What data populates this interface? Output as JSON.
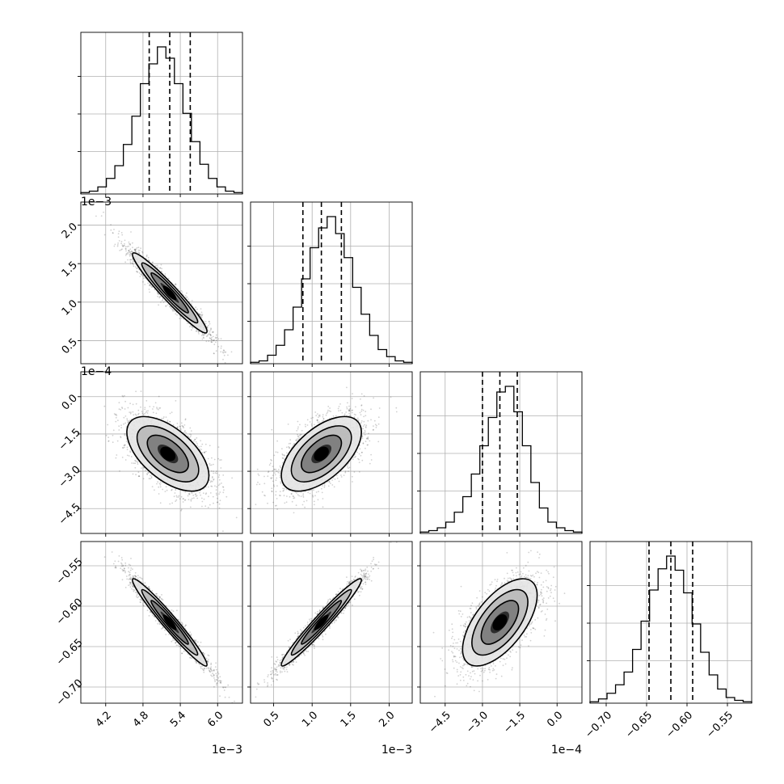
{
  "chart_data": {
    "type": "corner",
    "parameters": [
      {
        "range": [
          3.8,
          6.4
        ],
        "ticks": [
          4.2,
          4.8,
          5.4,
          6.0
        ],
        "tick_labels": [
          "4.2",
          "4.8",
          "5.4",
          "6.0"
        ],
        "offset": "1e−3",
        "quantiles": [
          4.9,
          5.23,
          5.56
        ]
      },
      {
        "range": [
          0.2,
          2.3
        ],
        "ticks": [
          0.5,
          1.0,
          1.5,
          2.0
        ],
        "tick_labels": [
          "0.5",
          "1.0",
          "1.5",
          "2.0"
        ],
        "offset": "1e−3",
        "quantiles": [
          0.88,
          1.12,
          1.38
        ]
      },
      {
        "range": [
          -5.5,
          1.0
        ],
        "ticks": [
          -4.5,
          -3.0,
          -1.5,
          0.0
        ],
        "tick_labels": [
          "−4.5",
          "−3.0",
          "−1.5",
          "0.0"
        ],
        "offset": "1e−4",
        "quantiles": [
          -3.0,
          -2.3,
          -1.6
        ]
      },
      {
        "range": [
          -0.72,
          -0.52
        ],
        "ticks": [
          -0.7,
          -0.65,
          -0.6,
          -0.55
        ],
        "tick_labels": [
          "−0.70",
          "−0.65",
          "−0.60",
          "−0.55"
        ],
        "offset": "",
        "quantiles": [
          -0.647,
          -0.62,
          -0.593
        ]
      }
    ],
    "histograms": [
      [
        1,
        2,
        5,
        11,
        20,
        35,
        55,
        78,
        92,
        104,
        96,
        78,
        57,
        37,
        21,
        11,
        5,
        2,
        1
      ],
      [
        1,
        2,
        6,
        13,
        24,
        40,
        60,
        82,
        96,
        104,
        92,
        75,
        54,
        35,
        20,
        10,
        5,
        2,
        1
      ],
      [
        1,
        2,
        4,
        8,
        15,
        26,
        42,
        62,
        82,
        100,
        104,
        86,
        62,
        36,
        18,
        8,
        4,
        2,
        1
      ],
      [
        1,
        3,
        7,
        13,
        22,
        38,
        58,
        80,
        95,
        104,
        94,
        78,
        56,
        36,
        20,
        10,
        4,
        2,
        1
      ]
    ],
    "pairs": [
      {
        "row": 1,
        "col": 0,
        "center": [
          5.23,
          1.12
        ],
        "sd": [
          0.3,
          0.26
        ],
        "corr": -0.96
      },
      {
        "row": 2,
        "col": 0,
        "center": [
          5.2,
          -2.3
        ],
        "sd": [
          0.33,
          0.75
        ],
        "corr": -0.58
      },
      {
        "row": 2,
        "col": 1,
        "center": [
          1.12,
          -2.3
        ],
        "sd": [
          0.26,
          0.75
        ],
        "corr": 0.58
      },
      {
        "row": 3,
        "col": 0,
        "center": [
          5.23,
          -0.62
        ],
        "sd": [
          0.3,
          0.027
        ],
        "corr": -0.97
      },
      {
        "row": 3,
        "col": 1,
        "center": [
          1.12,
          -0.62
        ],
        "sd": [
          0.26,
          0.027
        ],
        "corr": 0.97
      },
      {
        "row": 3,
        "col": 2,
        "center": [
          -2.3,
          -0.62
        ],
        "sd": [
          0.75,
          0.027
        ],
        "corr": 0.62
      }
    ],
    "contour_levels": [
      0.5,
      1.0,
      1.5,
      2.0
    ],
    "grid": true
  }
}
